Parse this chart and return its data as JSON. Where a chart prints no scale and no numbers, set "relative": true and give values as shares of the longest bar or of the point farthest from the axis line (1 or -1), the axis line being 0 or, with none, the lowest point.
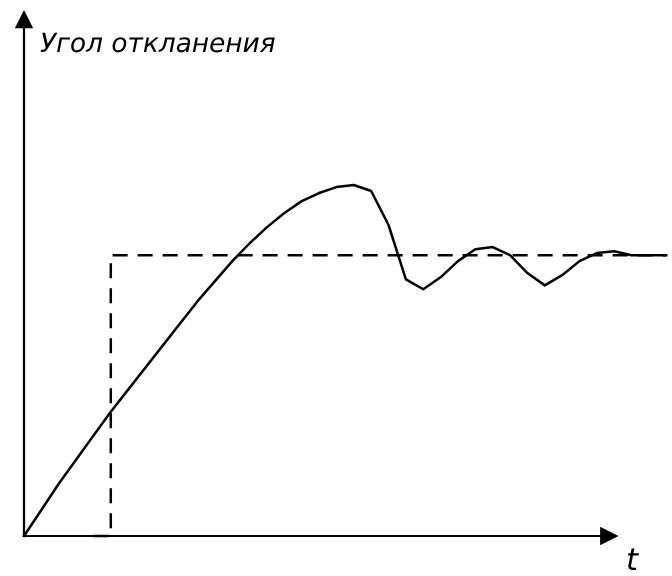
{
  "chart_data": {
    "type": "line",
    "relative": true,
    "annotations": [
      "Угол откланения"
    ],
    "xlabel": "t",
    "marker": "none",
    "categories": [
      null,
      null,
      null,
      null,
      null,
      null,
      null,
      null,
      null,
      null,
      null,
      null,
      null,
      null,
      null,
      null,
      null,
      null,
      null,
      null,
      null,
      null,
      null,
      null,
      null,
      null,
      null,
      null,
      null,
      null,
      null,
      null,
      null,
      null,
      null,
      null,
      null,
      null
    ],
    "series": [
      {
        "color": "#000000",
        "line_style": "solid",
        "values": [
          0,
          0.074,
          0.149,
          0.217,
          0.286,
          0.354,
          0.417,
          0.48,
          0.543,
          0.606,
          0.669,
          0.726,
          0.783,
          0.834,
          0.88,
          0.92,
          0.954,
          0.977,
          0.994,
          1,
          0.983,
          0.886,
          0.731,
          0.703,
          0.737,
          0.783,
          0.817,
          0.823,
          0.8,
          0.749,
          0.714,
          0.743,
          0.783,
          0.806,
          0.811,
          0.8,
          0.8,
          0.8
        ]
      },
      {
        "type": "step",
        "color": "#000000",
        "line_style": "dashed",
        "values": [
          null,
          null,
          null,
          null,
          0,
          0.8,
          0.8,
          0.8,
          0.8,
          0.8,
          0.8,
          0.8,
          0.8,
          0.8,
          0.8,
          0.8,
          0.8,
          0.8,
          0.8,
          0.8,
          0.8,
          0.8,
          0.8,
          0.8,
          0.8,
          0.8,
          0.8,
          0.8,
          0.8,
          0.8,
          0.8,
          0.8,
          0.8,
          0.8,
          0.8,
          0.8,
          0.8,
          0.8
        ]
      }
    ]
  }
}
